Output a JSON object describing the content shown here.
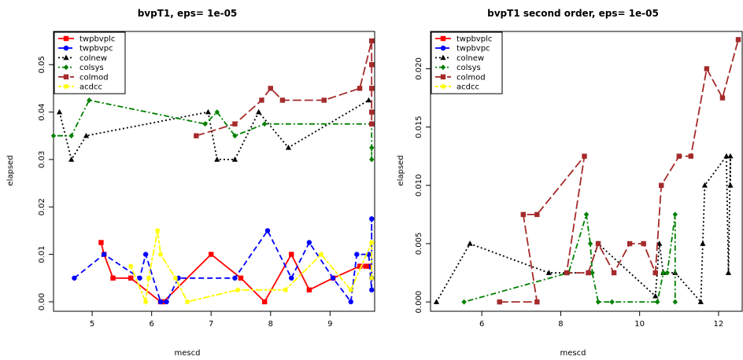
{
  "colors": {
    "twpbvplc": "#ff0000",
    "twpbvpc": "#0000ff",
    "colnew": "#000000",
    "colsys": "#008000",
    "colmod": "#a52a2a",
    "acdcc": "#ffff00"
  },
  "chart_data": [
    {
      "type": "line",
      "title": "bvpT1, eps= 1e-05",
      "xlabel": "mescd",
      "ylabel": "elapsed",
      "xlim": [
        4.35,
        9.75
      ],
      "ylim": [
        -0.002,
        0.057
      ],
      "x_ticks": [
        "5",
        "6",
        "7",
        "8",
        "9"
      ],
      "y_ticks": [
        "0.00",
        "0.01",
        "0.02",
        "0.03",
        "0.04",
        "0.05"
      ],
      "grid": false,
      "legend": "top-left",
      "series": [
        {
          "name": "twpbvplc",
          "style": "solid",
          "marker": "square",
          "color": "#ff0000",
          "x": [
            5.15,
            5.2,
            5.35,
            5.65,
            6.15,
            6.2,
            7.0,
            7.5,
            7.9,
            8.35,
            8.65,
            9.05,
            9.5,
            9.6,
            9.65
          ],
          "y": [
            0.0125,
            0.01,
            0.005,
            0.005,
            0.0,
            0.0,
            0.01,
            0.005,
            0.0,
            0.01,
            0.0025,
            0.005,
            0.0075,
            0.0075,
            0.0075
          ]
        },
        {
          "name": "twpbvpc",
          "style": "dashed",
          "marker": "circle",
          "color": "#0000ff",
          "x": [
            4.7,
            5.2,
            5.8,
            5.9,
            6.15,
            6.25,
            6.45,
            7.4,
            7.95,
            8.35,
            8.65,
            9.05,
            9.35,
            9.45,
            9.65,
            9.7,
            9.7,
            9.7
          ],
          "y": [
            0.005,
            0.01,
            0.005,
            0.01,
            0.0,
            0.0,
            0.005,
            0.005,
            0.015,
            0.005,
            0.0125,
            0.005,
            0.0,
            0.01,
            0.01,
            0.0025,
            0.0175,
            0.005
          ]
        },
        {
          "name": "colnew",
          "style": "dotted",
          "marker": "triangle",
          "color": "#000000",
          "x": [
            4.45,
            4.65,
            4.9,
            6.95,
            7.1,
            7.4,
            7.8,
            8.3,
            9.65
          ],
          "y": [
            0.04,
            0.03,
            0.035,
            0.04,
            0.03,
            0.03,
            0.04,
            0.0325,
            0.0425
          ]
        },
        {
          "name": "colsys",
          "style": "dotdash",
          "marker": "diamond",
          "color": "#008000",
          "x": [
            4.35,
            4.65,
            4.95,
            6.9,
            7.1,
            7.4,
            7.9,
            9.7,
            9.7,
            9.7
          ],
          "y": [
            0.035,
            0.035,
            0.0425,
            0.0375,
            0.04,
            0.035,
            0.0375,
            0.0375,
            0.03,
            0.0325
          ]
        },
        {
          "name": "colmod",
          "style": "longdash",
          "marker": "square",
          "color": "#a52a2a",
          "x": [
            6.75,
            7.4,
            7.85,
            8.0,
            8.2,
            8.9,
            9.5,
            9.7,
            9.7,
            9.7,
            9.7,
            9.7
          ],
          "y": [
            0.035,
            0.0375,
            0.0425,
            0.045,
            0.0425,
            0.0425,
            0.045,
            0.055,
            0.05,
            0.045,
            0.04,
            0.0375
          ]
        },
        {
          "name": "acdcc",
          "style": "twodash",
          "marker": "star",
          "color": "#ffff00",
          "x": [
            5.65,
            5.9,
            5.95,
            6.1,
            6.15,
            6.4,
            6.6,
            7.45,
            8.25,
            8.85,
            9.35,
            9.7,
            9.7
          ],
          "y": [
            0.0075,
            0.0,
            0.005,
            0.015,
            0.01,
            0.005,
            0.0,
            0.0025,
            0.0025,
            0.01,
            0.0025,
            0.0125,
            0.005
          ]
        }
      ]
    },
    {
      "type": "line",
      "title": "bvpT1 second order, eps= 1e-05",
      "xlabel": "mescd",
      "ylabel": "elapsed",
      "xlim": [
        4.7,
        12.6
      ],
      "ylim": [
        -0.0008,
        0.0232
      ],
      "x_ticks": [
        "6",
        "8",
        "10",
        "12"
      ],
      "y_ticks": [
        "0.000",
        "0.005",
        "0.010",
        "0.015",
        "0.020"
      ],
      "grid": false,
      "legend": "top-left",
      "series": [
        {
          "name": "twpbvplc",
          "style": "solid",
          "marker": "square",
          "color": "#ff0000",
          "x": [],
          "y": []
        },
        {
          "name": "twpbvpc",
          "style": "dashed",
          "marker": "circle",
          "color": "#0000ff",
          "x": [],
          "y": []
        },
        {
          "name": "colnew",
          "style": "dotted",
          "marker": "triangle",
          "color": "#000000",
          "x": [
            4.85,
            5.7,
            7.7,
            8.7,
            8.95,
            10.4,
            10.5,
            10.6,
            10.9,
            11.55,
            11.6,
            11.65,
            12.2,
            12.25,
            12.3,
            12.3
          ],
          "y": [
            0.0,
            0.005,
            0.0025,
            0.0025,
            0.005,
            0.0005,
            0.005,
            0.0025,
            0.0025,
            0.0,
            0.005,
            0.01,
            0.0125,
            0.0025,
            0.0125,
            0.01
          ]
        },
        {
          "name": "colsys",
          "style": "dotdash",
          "marker": "diamond",
          "color": "#008000",
          "x": [
            5.55,
            8.2,
            8.65,
            8.75,
            8.8,
            8.95,
            9.3,
            10.45,
            10.6,
            10.7,
            10.9,
            10.9
          ],
          "y": [
            0.0,
            0.0025,
            0.0075,
            0.005,
            0.0025,
            0.0,
            0.0,
            0.0,
            0.0025,
            0.0025,
            0.0075,
            0.0
          ]
        },
        {
          "name": "colmod",
          "style": "longdash",
          "marker": "square",
          "color": "#a52a2a",
          "x": [
            6.45,
            7.4,
            7.05,
            7.4,
            8.6,
            8.15,
            8.7,
            8.95,
            9.35,
            9.75,
            10.1,
            10.4,
            10.55,
            11.0,
            11.3,
            11.7,
            12.1,
            12.5
          ],
          "y": [
            0.0,
            0.0,
            0.0075,
            0.0075,
            0.0125,
            0.0025,
            0.0025,
            0.005,
            0.0025,
            0.005,
            0.005,
            0.0025,
            0.01,
            0.0125,
            0.0125,
            0.02,
            0.0175,
            0.0225
          ]
        },
        {
          "name": "acdcc",
          "style": "twodash",
          "marker": "star",
          "color": "#ffff00",
          "x": [],
          "y": []
        }
      ]
    }
  ]
}
